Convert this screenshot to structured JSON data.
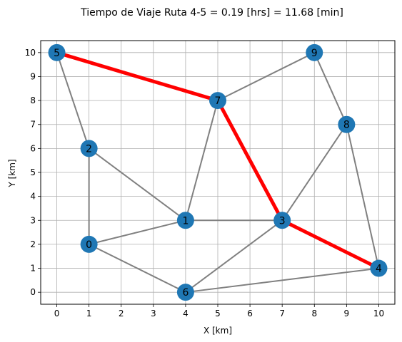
{
  "chart_data": {
    "type": "scatter",
    "title": "Tiempo de Viaje Ruta 4-5 = 0.19 [hrs] = 11.68 [min]",
    "xlabel": "X [km]",
    "ylabel": "Y [km]",
    "xlim": [
      -0.5,
      10.5
    ],
    "ylim": [
      -0.5,
      10.5
    ],
    "xticks": [
      "0",
      "1",
      "2",
      "3",
      "4",
      "5",
      "6",
      "7",
      "8",
      "9",
      "10"
    ],
    "yticks": [
      "0",
      "1",
      "2",
      "3",
      "4",
      "5",
      "6",
      "7",
      "8",
      "9",
      "10"
    ],
    "grid": true,
    "nodes": [
      {
        "id": "0",
        "x": 1,
        "y": 2
      },
      {
        "id": "1",
        "x": 4,
        "y": 3
      },
      {
        "id": "2",
        "x": 1,
        "y": 6
      },
      {
        "id": "3",
        "x": 7,
        "y": 3
      },
      {
        "id": "4",
        "x": 10,
        "y": 1
      },
      {
        "id": "5",
        "x": 0,
        "y": 10
      },
      {
        "id": "6",
        "x": 4,
        "y": 0
      },
      {
        "id": "7",
        "x": 5,
        "y": 8
      },
      {
        "id": "8",
        "x": 9,
        "y": 7
      },
      {
        "id": "9",
        "x": 8,
        "y": 10
      }
    ],
    "edges": [
      [
        "5",
        "2"
      ],
      [
        "5",
        "7"
      ],
      [
        "2",
        "0"
      ],
      [
        "2",
        "1"
      ],
      [
        "0",
        "1"
      ],
      [
        "0",
        "6"
      ],
      [
        "1",
        "7"
      ],
      [
        "1",
        "3"
      ],
      [
        "7",
        "9"
      ],
      [
        "7",
        "3"
      ],
      [
        "9",
        "8"
      ],
      [
        "8",
        "3"
      ],
      [
        "8",
        "4"
      ],
      [
        "3",
        "6"
      ],
      [
        "3",
        "4"
      ],
      [
        "6",
        "4"
      ]
    ],
    "route": [
      "4",
      "3",
      "7",
      "5"
    ],
    "colors": {
      "edge": "#808080",
      "route": "#ff0000",
      "node": "#1f77b4",
      "grid": "#b0b0b0"
    }
  }
}
